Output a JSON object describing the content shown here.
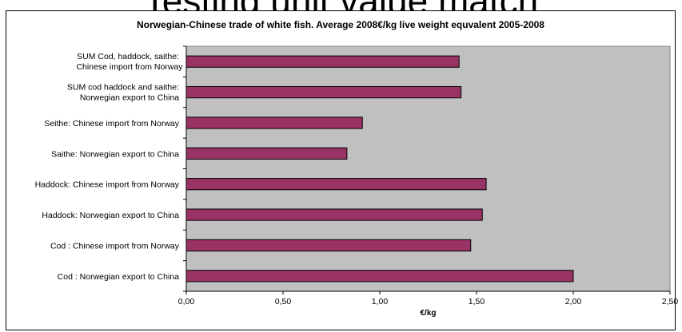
{
  "slide": {
    "title": "Testing unit value match"
  },
  "chart_data": {
    "type": "bar",
    "orientation": "horizontal",
    "title": "Norwegian-Chinese trade of white fish. Average 2008€/kg live weight equvalent 2005-2008",
    "xlabel": "€/kg",
    "ylabel": "",
    "xlim": [
      0,
      2.5
    ],
    "ticks": [
      "0,00",
      "0,50",
      "1,00",
      "1,50",
      "2,00",
      "2,50"
    ],
    "tick_values": [
      0,
      0.5,
      1.0,
      1.5,
      2.0,
      2.5
    ],
    "grid": false,
    "plot_background": "#c0c0c0",
    "bar_color": "#993366",
    "categories": [
      "Cod : Norwegian export to China",
      "Cod : Chinese import from Norway",
      "Haddock: Norwegian export to China",
      "Haddock: Chinese import from Norway",
      "Saithe: Norwegian export to China",
      "Seithe: Chinese import from Norway",
      "SUM cod haddock and saithe: Norwegian export to China",
      "SUM Cod, haddock, saithe: Chinese import from Norway"
    ],
    "values": [
      2.0,
      1.47,
      1.53,
      1.55,
      0.83,
      0.91,
      1.42,
      1.41
    ]
  }
}
